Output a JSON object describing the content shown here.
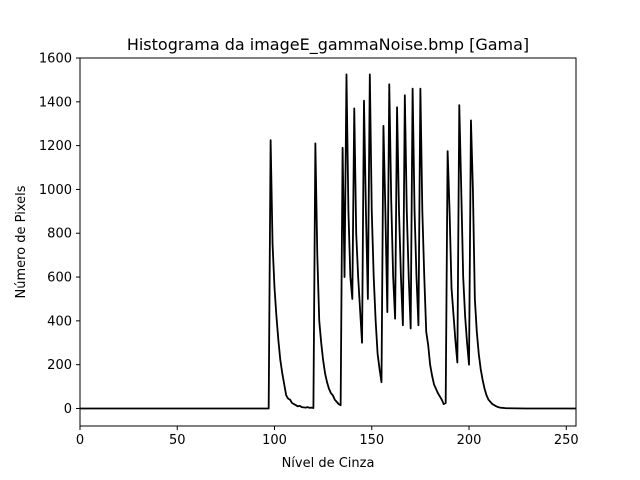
{
  "chart_data": {
    "type": "line",
    "title": "Histograma da imageE_gammaNoise.bmp [Gama]",
    "xlabel": "Nível de Cinza",
    "ylabel": "Número de Pixels",
    "xlim": [
      0,
      255
    ],
    "ylim": [
      -80,
      1600
    ],
    "xticks": [
      0,
      50,
      100,
      150,
      200,
      250
    ],
    "yticks": [
      0,
      200,
      400,
      600,
      800,
      1000,
      1200,
      1400,
      1600
    ],
    "grid": false,
    "line_color": "#000000",
    "series": [
      {
        "points": [
          [
            0,
            0
          ],
          [
            97,
            0
          ],
          [
            98,
            1225
          ],
          [
            99,
            750
          ],
          [
            100,
            550
          ],
          [
            101,
            420
          ],
          [
            102,
            310
          ],
          [
            103,
            220
          ],
          [
            104,
            160
          ],
          [
            105,
            110
          ],
          [
            106,
            60
          ],
          [
            107,
            45
          ],
          [
            108,
            40
          ],
          [
            109,
            25
          ],
          [
            110,
            20
          ],
          [
            111,
            15
          ],
          [
            112,
            10
          ],
          [
            113,
            12
          ],
          [
            114,
            6
          ],
          [
            115,
            5
          ],
          [
            116,
            4
          ],
          [
            117,
            6
          ],
          [
            118,
            3
          ],
          [
            119,
            4
          ],
          [
            120,
            2
          ],
          [
            121,
            1210
          ],
          [
            122,
            700
          ],
          [
            123,
            400
          ],
          [
            124,
            300
          ],
          [
            125,
            220
          ],
          [
            126,
            160
          ],
          [
            127,
            120
          ],
          [
            128,
            90
          ],
          [
            129,
            70
          ],
          [
            130,
            60
          ],
          [
            131,
            40
          ],
          [
            132,
            30
          ],
          [
            133,
            20
          ],
          [
            134,
            15
          ],
          [
            135,
            1190
          ],
          [
            136,
            600
          ],
          [
            137,
            1525
          ],
          [
            138,
            900
          ],
          [
            139,
            600
          ],
          [
            140,
            500
          ],
          [
            141,
            1370
          ],
          [
            142,
            800
          ],
          [
            143,
            600
          ],
          [
            144,
            450
          ],
          [
            145,
            300
          ],
          [
            146,
            1405
          ],
          [
            147,
            900
          ],
          [
            148,
            500
          ],
          [
            149,
            1525
          ],
          [
            150,
            900
          ],
          [
            151,
            600
          ],
          [
            152,
            400
          ],
          [
            153,
            250
          ],
          [
            154,
            180
          ],
          [
            155,
            120
          ],
          [
            156,
            1290
          ],
          [
            157,
            900
          ],
          [
            158,
            440
          ],
          [
            159,
            1480
          ],
          [
            160,
            950
          ],
          [
            161,
            600
          ],
          [
            162,
            410
          ],
          [
            163,
            1375
          ],
          [
            164,
            900
          ],
          [
            165,
            600
          ],
          [
            166,
            380
          ],
          [
            167,
            1430
          ],
          [
            168,
            900
          ],
          [
            169,
            600
          ],
          [
            170,
            365
          ],
          [
            171,
            1460
          ],
          [
            172,
            900
          ],
          [
            173,
            600
          ],
          [
            174,
            380
          ],
          [
            175,
            1460
          ],
          [
            176,
            900
          ],
          [
            177,
            600
          ],
          [
            178,
            350
          ],
          [
            179,
            290
          ],
          [
            180,
            200
          ],
          [
            181,
            150
          ],
          [
            182,
            110
          ],
          [
            183,
            90
          ],
          [
            184,
            70
          ],
          [
            185,
            55
          ],
          [
            186,
            40
          ],
          [
            187,
            20
          ],
          [
            188,
            25
          ],
          [
            189,
            1175
          ],
          [
            190,
            900
          ],
          [
            191,
            550
          ],
          [
            192,
            430
          ],
          [
            193,
            310
          ],
          [
            194,
            210
          ],
          [
            195,
            1385
          ],
          [
            196,
            1000
          ],
          [
            197,
            600
          ],
          [
            198,
            420
          ],
          [
            199,
            300
          ],
          [
            200,
            200
          ],
          [
            201,
            1315
          ],
          [
            202,
            1000
          ],
          [
            203,
            500
          ],
          [
            204,
            350
          ],
          [
            205,
            250
          ],
          [
            206,
            180
          ],
          [
            207,
            130
          ],
          [
            208,
            90
          ],
          [
            209,
            60
          ],
          [
            210,
            40
          ],
          [
            211,
            30
          ],
          [
            212,
            20
          ],
          [
            213,
            15
          ],
          [
            214,
            10
          ],
          [
            215,
            6
          ],
          [
            216,
            4
          ],
          [
            217,
            3
          ],
          [
            218,
            2
          ],
          [
            219,
            1
          ],
          [
            220,
            1
          ],
          [
            230,
            0
          ],
          [
            255,
            0
          ]
        ]
      }
    ]
  }
}
